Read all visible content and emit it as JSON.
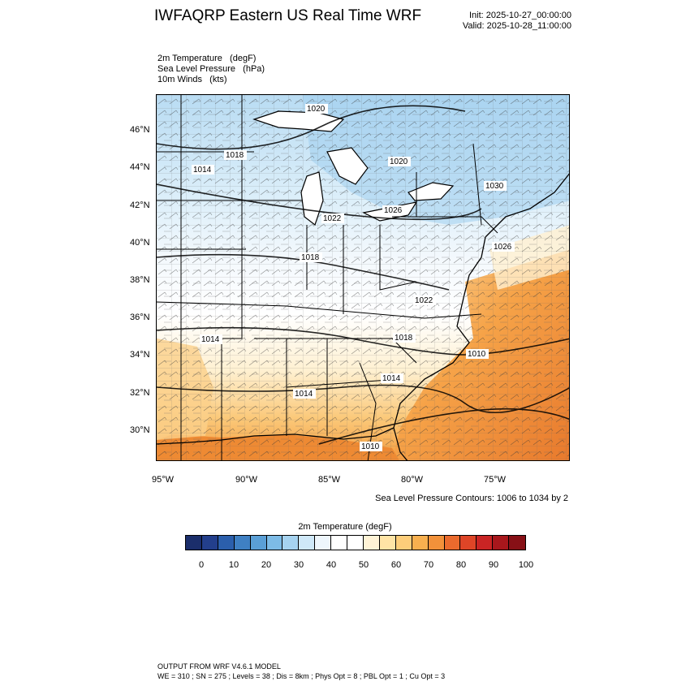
{
  "header": {
    "title": "IWFAQRP Eastern US Real Time WRF",
    "init": "Init: 2025-10-27_00:00:00",
    "valid": "Valid: 2025-10-28_11:00:00"
  },
  "fields": [
    "2m Temperature   (degF)",
    "Sea Level Pressure   (hPa)",
    "10m Winds   (kts)"
  ],
  "map": {
    "lat_labels": [
      "46°N",
      "44°N",
      "42°N",
      "40°N",
      "38°N",
      "36°N",
      "34°N",
      "32°N",
      "30°N"
    ],
    "lon_labels": [
      "95°W",
      "90°W",
      "85°W",
      "80°W",
      "75°W"
    ],
    "pressure_labels": [
      "1020",
      "1018",
      "1014",
      "1020",
      "1022",
      "1026",
      "1030",
      "1026",
      "1018",
      "1022",
      "1014",
      "1018",
      "1010",
      "1014",
      "1014",
      "1010"
    ],
    "land_color": "#ffffff",
    "ocean_warm_color": "#f08a2e"
  },
  "contour_note": "Sea Level Pressure Contours: 1006 to 1034 by 2",
  "colorbar": {
    "title": "2m Temperature  (degF)",
    "colors": [
      "#1b2e6b",
      "#233f8c",
      "#2b5fac",
      "#3f80c3",
      "#5a9fd6",
      "#7dbbe6",
      "#a6d3f0",
      "#cfe8f8",
      "#eef6fc",
      "#ffffff",
      "#ffffff",
      "#fff3d6",
      "#ffe4a6",
      "#fdcd7a",
      "#f8b04f",
      "#f2913a",
      "#ea6a2d",
      "#de4527",
      "#c92424",
      "#a8171c",
      "#871016"
    ],
    "labels": [
      "0",
      "10",
      "20",
      "30",
      "40",
      "50",
      "60",
      "70",
      "80",
      "90",
      "100"
    ]
  },
  "footer": {
    "line1": "OUTPUT FROM WRF V4.6.1 MODEL",
    "line2": "WE = 310 ; SN = 275 ; Levels = 38 ; Dis = 8km ; Phys Opt = 8 ; PBL Opt = 1 ; Cu Opt = 3"
  }
}
